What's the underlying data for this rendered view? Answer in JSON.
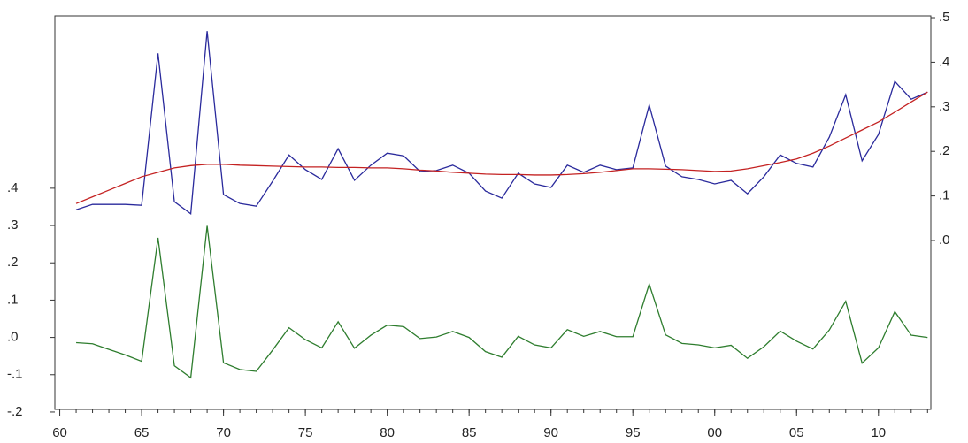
{
  "chart_data": {
    "type": "line",
    "x": [
      1961,
      1962,
      1963,
      1964,
      1965,
      1966,
      1967,
      1968,
      1969,
      1970,
      1971,
      1972,
      1973,
      1974,
      1975,
      1976,
      1977,
      1978,
      1979,
      1980,
      1981,
      1982,
      1983,
      1984,
      1985,
      1986,
      1987,
      1988,
      1989,
      1990,
      1991,
      1992,
      1993,
      1994,
      1995,
      1996,
      1997,
      1998,
      1999,
      2000,
      2001,
      2002,
      2003,
      2004,
      2005,
      2006,
      2007,
      2008,
      2009,
      2010,
      2011,
      2012,
      2013
    ],
    "series": [
      {
        "color": "#2a2a9c",
        "axis": "y2",
        "values": [
          0.069,
          0.081,
          0.081,
          0.081,
          0.079,
          0.42,
          0.087,
          0.06,
          0.47,
          0.103,
          0.083,
          0.077,
          0.133,
          0.192,
          0.159,
          0.137,
          0.206,
          0.135,
          0.169,
          0.196,
          0.19,
          0.155,
          0.157,
          0.169,
          0.151,
          0.111,
          0.095,
          0.151,
          0.127,
          0.119,
          0.169,
          0.153,
          0.169,
          0.159,
          0.163,
          0.304,
          0.167,
          0.143,
          0.137,
          0.127,
          0.135,
          0.105,
          0.143,
          0.192,
          0.173,
          0.165,
          0.232,
          0.327,
          0.179,
          0.238,
          0.357,
          0.317,
          0.333
        ]
      },
      {
        "color": "#c42222",
        "axis": "y2",
        "values": [
          0.083,
          0.098,
          0.113,
          0.128,
          0.143,
          0.153,
          0.163,
          0.168,
          0.171,
          0.171,
          0.169,
          0.168,
          0.167,
          0.166,
          0.165,
          0.165,
          0.164,
          0.164,
          0.163,
          0.163,
          0.161,
          0.158,
          0.156,
          0.153,
          0.151,
          0.149,
          0.148,
          0.148,
          0.147,
          0.147,
          0.148,
          0.15,
          0.153,
          0.157,
          0.161,
          0.161,
          0.16,
          0.159,
          0.157,
          0.155,
          0.156,
          0.161,
          0.168,
          0.175,
          0.183,
          0.196,
          0.212,
          0.23,
          0.248,
          0.266,
          0.288,
          0.311,
          0.333
        ]
      },
      {
        "color": "#2e7d2e",
        "values": [
          -0.014,
          -0.017,
          -0.032,
          -0.047,
          -0.064,
          0.267,
          -0.076,
          -0.108,
          0.299,
          -0.068,
          -0.086,
          -0.091,
          -0.034,
          0.026,
          -0.006,
          -0.028,
          0.042,
          -0.029,
          0.006,
          0.033,
          0.029,
          -0.003,
          0.001,
          0.016,
          0,
          -0.038,
          -0.053,
          0.003,
          -0.02,
          -0.028,
          0.021,
          0.003,
          0.016,
          0.002,
          0.002,
          0.143,
          0.007,
          -0.016,
          -0.02,
          -0.028,
          -0.021,
          -0.056,
          -0.025,
          0.017,
          -0.01,
          -0.031,
          0.02,
          0.097,
          -0.069,
          -0.028,
          0.069,
          0.006,
          0
        ]
      }
    ],
    "xlim": [
      1959.7,
      2013.2
    ],
    "xticks": [
      {
        "value": 1960,
        "label": "60"
      },
      {
        "value": 1965,
        "label": "65"
      },
      {
        "value": 1970,
        "label": "70"
      },
      {
        "value": 1975,
        "label": "75"
      },
      {
        "value": 1980,
        "label": "80"
      },
      {
        "value": 1985,
        "label": "85"
      },
      {
        "value": 1990,
        "label": "90"
      },
      {
        "value": 1995,
        "label": "95"
      },
      {
        "value": 2000,
        "label": "00"
      },
      {
        "value": 2005,
        "label": "05"
      },
      {
        "value": 2010,
        "label": "10"
      }
    ],
    "ylim": [
      -0.193,
      0.862
    ],
    "yticks": [
      {
        "value": -0.2,
        "label": "-.2"
      },
      {
        "value": -0.1,
        "label": "-.1"
      },
      {
        "value": 0,
        "label": ".0"
      },
      {
        "value": 0.1,
        "label": ".1"
      },
      {
        "value": 0.2,
        "label": ".2"
      },
      {
        "value": 0.3,
        "label": ".3"
      },
      {
        "value": 0.4,
        "label": ".4"
      }
    ],
    "y2lim": [
      -0.379,
      0.504
    ],
    "y2ticks": [
      {
        "value": 0,
        "label": ".0"
      },
      {
        "value": 0.1,
        "label": ".1"
      },
      {
        "value": 0.2,
        "label": ".2"
      },
      {
        "value": 0.3,
        "label": ".3"
      },
      {
        "value": 0.4,
        "label": ".4"
      },
      {
        "value": 0.5,
        "label": ".5"
      }
    ]
  }
}
